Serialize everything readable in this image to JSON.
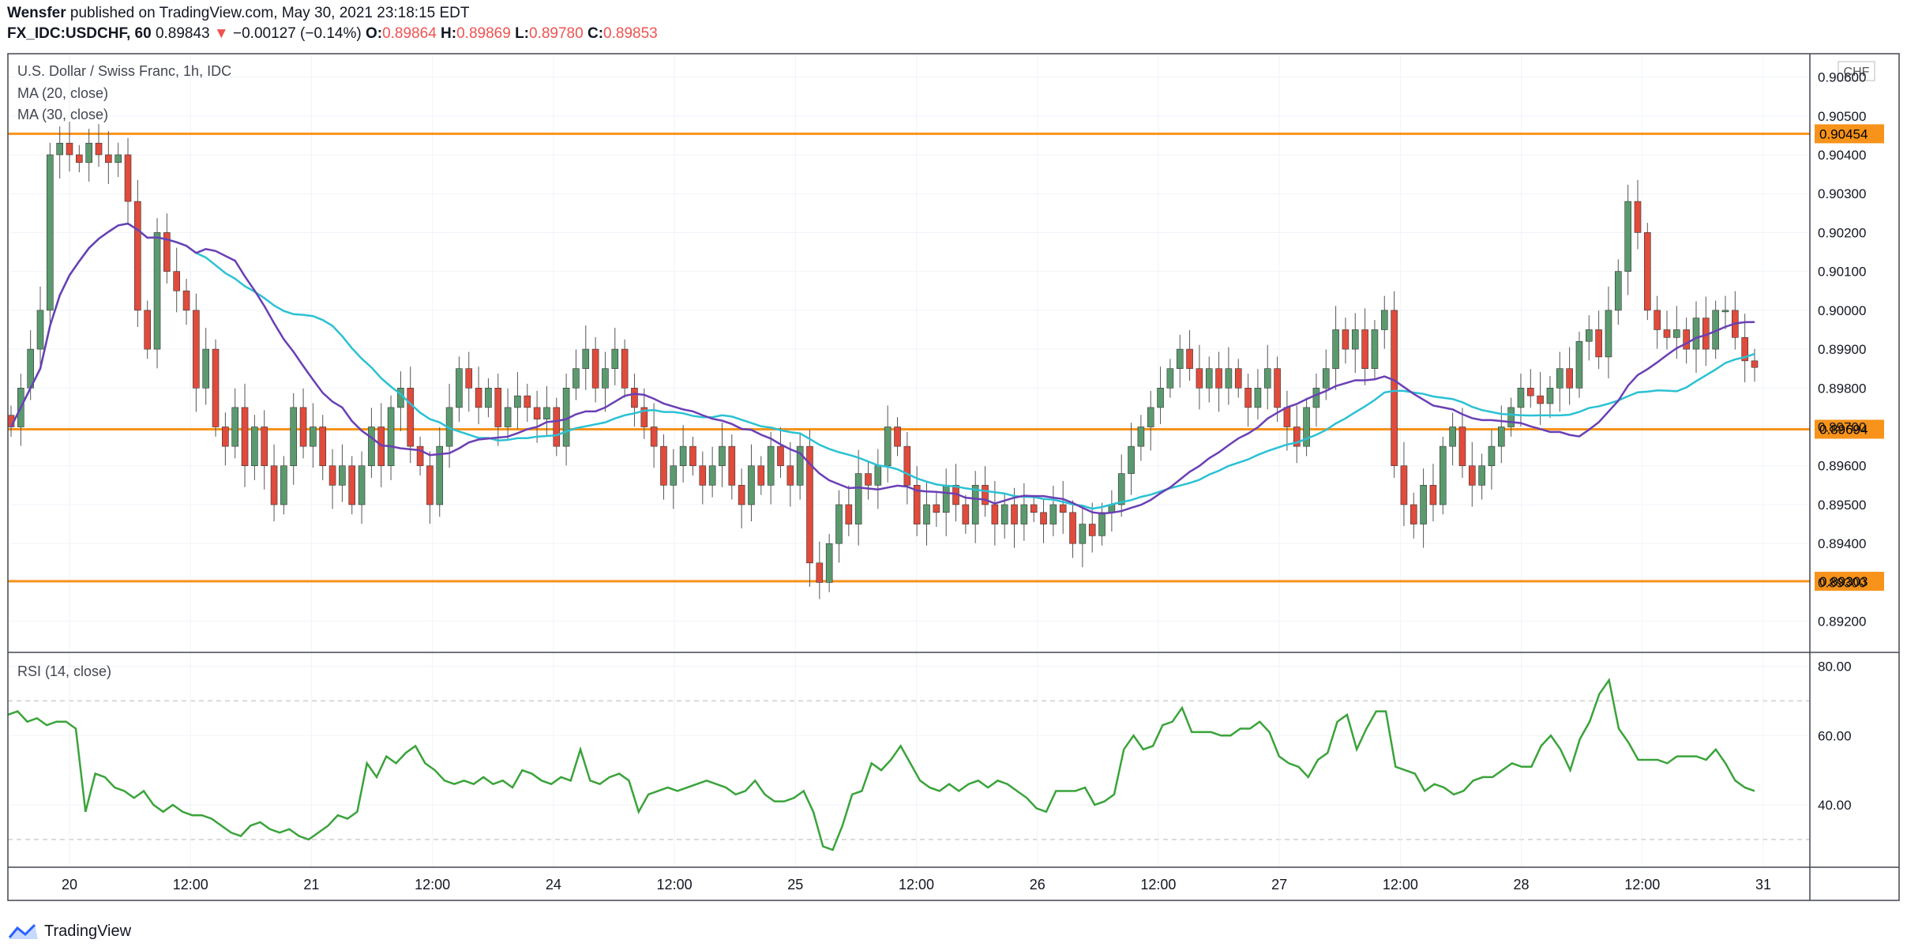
{
  "header": {
    "author": "Wensfer",
    "published_text": "published on TradingView.com, May 30, 2021 23:18:15 EDT",
    "symbol": "FX_IDC:USDCHF, 60",
    "last": "0.89843",
    "arrow": "▼",
    "change": "−0.00127 (−0.14%)",
    "o_label": "O:",
    "o": "0.89864",
    "h_label": "H:",
    "h": "0.89869",
    "l_label": "L:",
    "l": "0.89780",
    "c_label": "C:",
    "c": "0.89853"
  },
  "legend": {
    "main": "U.S. Dollar / Swiss Franc, 1h, IDC",
    "ma20": "MA (20, close)",
    "ma30": "MA (30, close)",
    "rsi": "RSI (14, close)",
    "currency": "CHF"
  },
  "brand": "TradingView",
  "colors": {
    "up": "#5b9a6f",
    "down": "#e04b3c",
    "ma20": "#6a3fb5",
    "ma30": "#2bc1d4",
    "hline": "#f7931a",
    "rsi": "#3aa33a"
  },
  "chart_data": [
    {
      "type": "candlestick",
      "title": "U.S. Dollar / Swiss Franc, 1h, IDC",
      "ylim": [
        0.8912,
        0.9066
      ],
      "y_ticks": [
        "0.89200",
        "0.89300",
        "0.89400",
        "0.89500",
        "0.89600",
        "0.89700",
        "0.89800",
        "0.89900",
        "0.90000",
        "0.90100",
        "0.90200",
        "0.90300",
        "0.90400",
        "0.90500",
        "0.90600"
      ],
      "x_ticks": [
        "20",
        "12:00",
        "21",
        "12:00",
        "24",
        "12:00",
        "25",
        "12:00",
        "26",
        "12:00",
        "27",
        "12:00",
        "28",
        "12:00",
        "31"
      ],
      "horizontal_lines": [
        "0.90454",
        "0.89694",
        "0.89303"
      ],
      "close": [
        0.897,
        0.898,
        0.899,
        0.9,
        0.904,
        0.9043,
        0.904,
        0.9038,
        0.9043,
        0.904,
        0.9038,
        0.904,
        0.9028,
        0.9,
        0.899,
        0.902,
        0.901,
        0.9005,
        0.9,
        0.898,
        0.899,
        0.897,
        0.8965,
        0.8975,
        0.896,
        0.897,
        0.896,
        0.895,
        0.896,
        0.8975,
        0.8965,
        0.897,
        0.896,
        0.8955,
        0.896,
        0.895,
        0.896,
        0.897,
        0.896,
        0.8975,
        0.898,
        0.8965,
        0.896,
        0.895,
        0.8965,
        0.8975,
        0.8985,
        0.898,
        0.8975,
        0.898,
        0.897,
        0.8975,
        0.8978,
        0.8975,
        0.8972,
        0.8975,
        0.8965,
        0.898,
        0.8985,
        0.899,
        0.898,
        0.8985,
        0.899,
        0.898,
        0.8975,
        0.897,
        0.8965,
        0.8955,
        0.896,
        0.8965,
        0.896,
        0.8955,
        0.896,
        0.8965,
        0.8955,
        0.895,
        0.896,
        0.8955,
        0.8965,
        0.896,
        0.8955,
        0.8965,
        0.8935,
        0.893,
        0.894,
        0.895,
        0.8945,
        0.8958,
        0.8955,
        0.896,
        0.897,
        0.8965,
        0.8955,
        0.8945,
        0.895,
        0.8948,
        0.8955,
        0.895,
        0.8945,
        0.8955,
        0.895,
        0.8945,
        0.895,
        0.8945,
        0.895,
        0.8948,
        0.8945,
        0.895,
        0.8948,
        0.894,
        0.8945,
        0.8942,
        0.8948,
        0.895,
        0.8958,
        0.8965,
        0.897,
        0.8975,
        0.898,
        0.8985,
        0.899,
        0.8985,
        0.898,
        0.8985,
        0.898,
        0.8985,
        0.898,
        0.8975,
        0.898,
        0.8985,
        0.8975,
        0.897,
        0.8965,
        0.8975,
        0.898,
        0.8985,
        0.8995,
        0.899,
        0.8995,
        0.8985,
        0.8995,
        0.9,
        0.896,
        0.895,
        0.8945,
        0.8955,
        0.895,
        0.8965,
        0.897,
        0.896,
        0.8955,
        0.896,
        0.8965,
        0.897,
        0.8975,
        0.898,
        0.8978,
        0.8976,
        0.898,
        0.8985,
        0.898,
        0.8992,
        0.8995,
        0.8988,
        0.9,
        0.901,
        0.9028,
        0.902,
        0.9,
        0.8995,
        0.8993,
        0.8995,
        0.899,
        0.8998,
        0.899,
        0.9,
        0.9,
        0.8993,
        0.8987,
        0.89853
      ],
      "ma20": "purple moving average",
      "ma30": "cyan moving average"
    },
    {
      "type": "line",
      "title": "RSI (14, close)",
      "ylim": [
        22,
        84
      ],
      "y_ticks": [
        "40.00",
        "60.00",
        "80.00"
      ],
      "bands": [
        30,
        70
      ],
      "values": [
        66,
        67,
        64,
        65,
        63,
        64,
        64,
        62,
        38,
        49,
        48,
        45,
        44,
        42,
        44,
        40,
        38,
        40,
        38,
        37,
        37,
        36,
        34,
        32,
        31,
        34,
        35,
        33,
        32,
        33,
        31,
        30,
        32,
        34,
        37,
        36,
        38,
        52,
        48,
        54,
        52,
        55,
        57,
        52,
        50,
        47,
        46,
        47,
        46,
        48,
        46,
        47,
        45,
        50,
        49,
        47,
        46,
        48,
        47,
        56,
        47,
        46,
        48,
        49,
        47,
        38,
        43,
        44,
        45,
        44,
        45,
        46,
        47,
        46,
        45,
        43,
        44,
        47,
        43,
        41,
        41,
        42,
        44,
        38,
        28,
        27,
        34,
        43,
        44,
        52,
        50,
        53,
        57,
        52,
        47,
        45,
        44,
        46,
        44,
        46,
        47,
        45,
        47,
        46,
        44,
        42,
        39,
        38,
        44,
        44,
        44,
        45,
        40,
        41,
        43,
        56,
        60,
        56,
        57,
        63,
        64,
        68,
        61,
        61,
        61,
        60,
        60,
        62,
        62,
        64,
        61,
        54,
        52,
        51,
        48,
        53,
        55,
        64,
        66,
        56,
        62,
        67,
        67,
        51,
        50,
        49,
        44,
        46,
        45,
        43,
        44,
        47,
        48,
        48,
        50,
        52,
        51,
        51,
        57,
        60,
        56,
        50,
        59,
        64,
        72,
        76,
        62,
        58,
        53,
        53,
        53,
        52,
        54,
        54,
        54,
        53,
        56,
        52,
        47,
        45,
        44
      ]
    }
  ]
}
